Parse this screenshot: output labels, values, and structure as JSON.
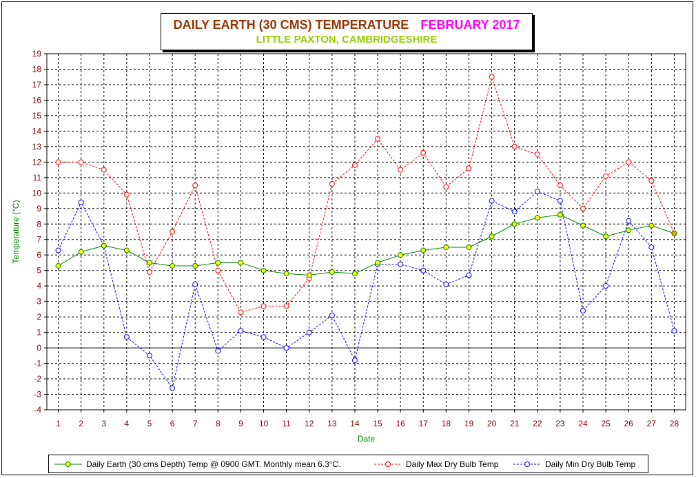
{
  "title": {
    "main": "DAILY EARTH (30 CMS) TEMPERATURE",
    "month": "FEBRUARY 2017",
    "subtitle": "LITTLE PAXTON, CAMBRIDGESHIRE"
  },
  "colors": {
    "title_main": "#993300",
    "title_month": "#ff00ff",
    "subtitle": "#99cc00",
    "axis_label": "#008000",
    "tick_label": "#800000",
    "earth_line": "#008000",
    "earth_marker": "#ffff00",
    "max_line": "#ff0000",
    "min_line": "#0000ff"
  },
  "chart_data": {
    "type": "line",
    "xlabel": "Date",
    "ylabel": "Temperature (°C)",
    "ylim": [
      -4,
      19
    ],
    "xlim": [
      1,
      28
    ],
    "grid": true,
    "legend_position": "bottom",
    "x": [
      1,
      2,
      3,
      4,
      5,
      6,
      7,
      8,
      9,
      10,
      11,
      12,
      13,
      14,
      15,
      16,
      17,
      18,
      19,
      20,
      21,
      22,
      23,
      24,
      25,
      26,
      27,
      28
    ],
    "series": [
      {
        "name": "Daily Earth (30 cms Depth) Temp @ 0900 GMT. Monthly mean 6.3°C.",
        "style": "solid",
        "values": [
          5.3,
          6.2,
          6.6,
          6.3,
          5.5,
          5.3,
          5.3,
          5.5,
          5.5,
          5.0,
          4.8,
          4.7,
          4.9,
          4.8,
          5.5,
          6.0,
          6.3,
          6.5,
          6.5,
          7.2,
          8.0,
          8.4,
          8.6,
          7.9,
          7.2,
          7.6,
          7.9,
          7.4
        ]
      },
      {
        "name": "Daily Max Dry Bulb Temp",
        "style": "dashed",
        "values": [
          12.0,
          12.0,
          11.5,
          9.9,
          4.9,
          7.5,
          10.5,
          5.0,
          2.3,
          2.7,
          2.7,
          4.5,
          10.6,
          11.8,
          13.5,
          11.5,
          12.6,
          10.4,
          11.6,
          17.5,
          13.0,
          12.5,
          10.5,
          9.0,
          11.1,
          12.0,
          10.8,
          7.4
        ]
      },
      {
        "name": "Daily Min Dry Bulb Temp",
        "style": "dashed",
        "values": [
          6.3,
          9.4,
          6.6,
          0.7,
          -0.5,
          -2.6,
          4.1,
          -0.2,
          1.1,
          0.7,
          0.0,
          1.0,
          2.1,
          -0.8,
          5.4,
          5.4,
          5.0,
          4.1,
          4.7,
          9.5,
          8.8,
          10.1,
          9.5,
          2.4,
          4.0,
          8.2,
          6.5,
          1.1
        ]
      }
    ]
  }
}
